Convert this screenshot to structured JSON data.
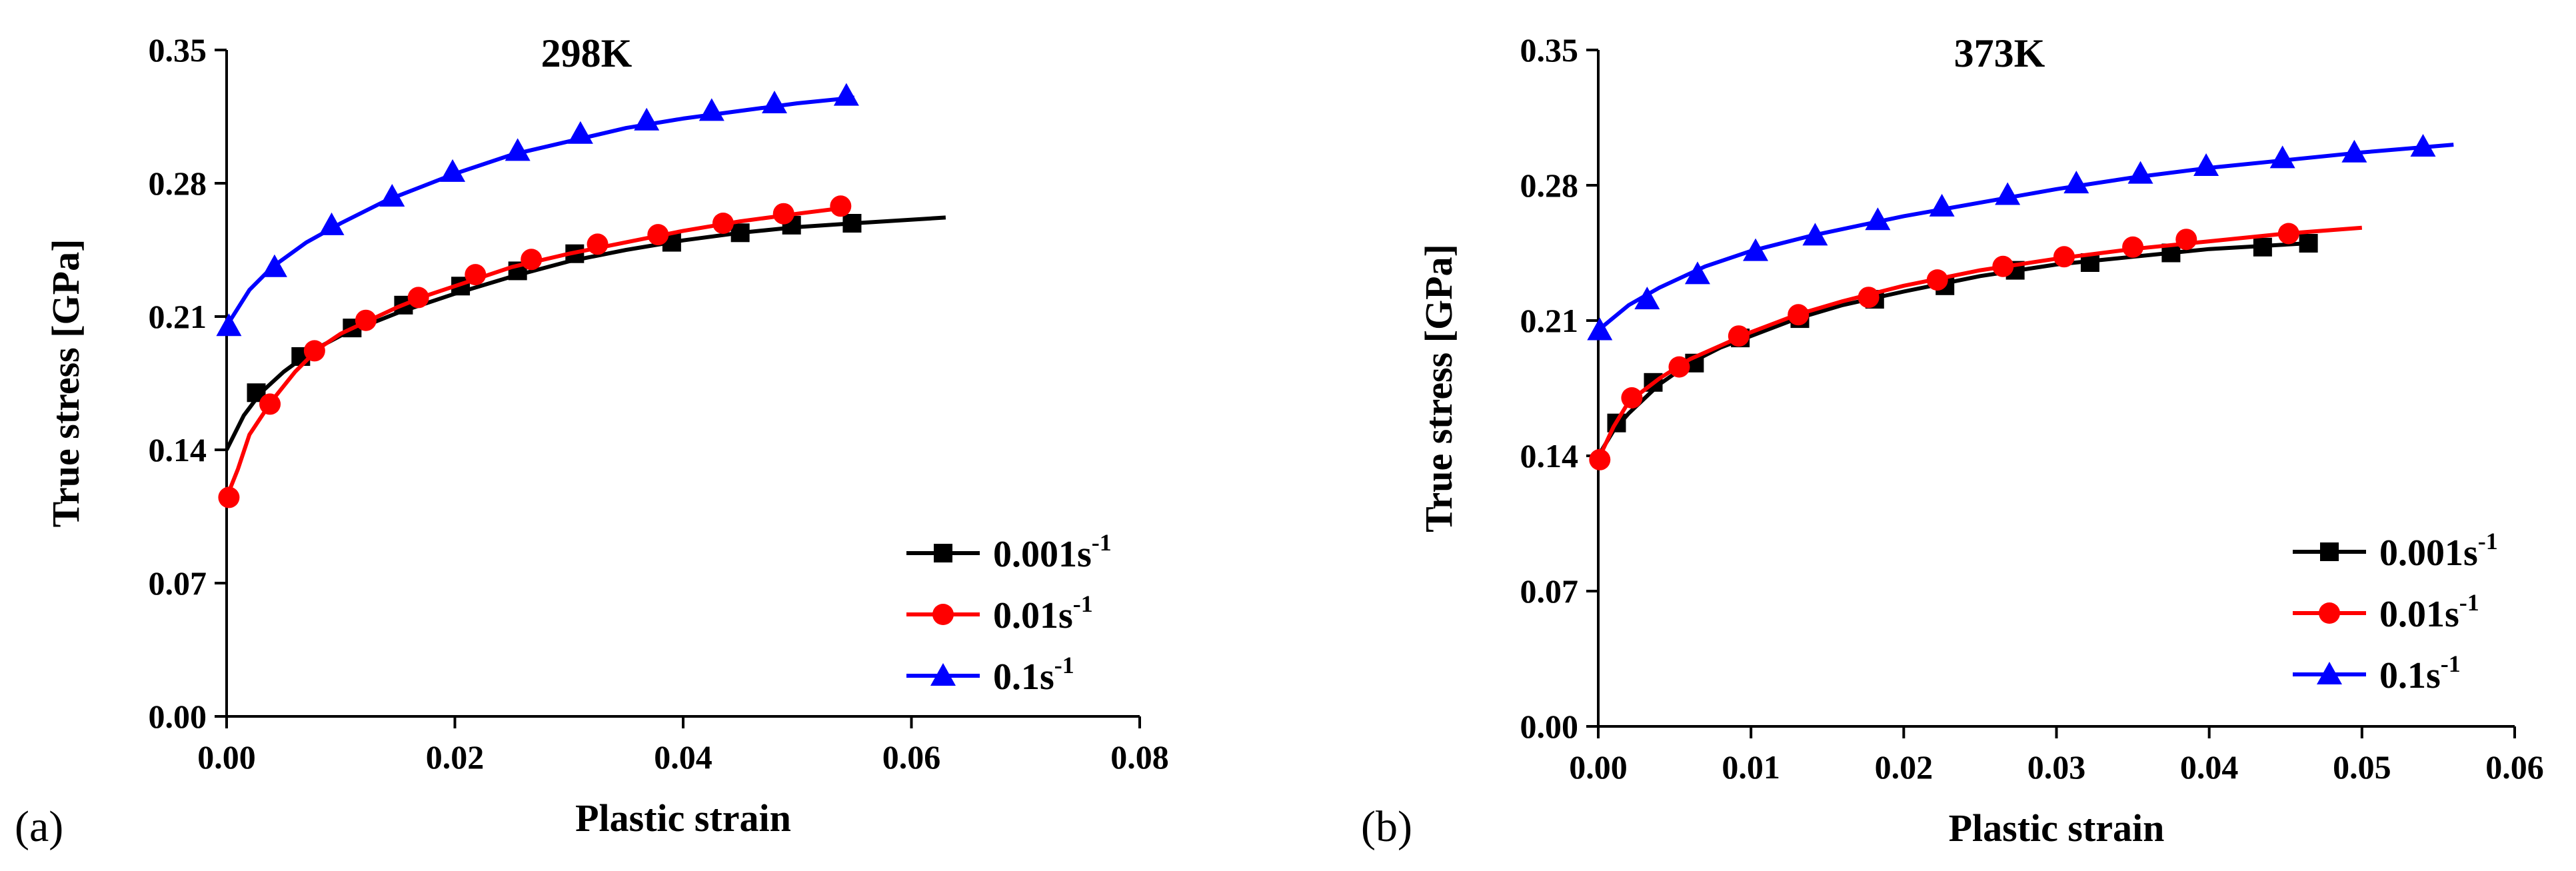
{
  "figure": {
    "panel_labels": [
      "(a)",
      "(b)"
    ]
  },
  "chart_data": [
    {
      "type": "line",
      "title": "298K",
      "xlabel": "Plastic strain",
      "ylabel": "True stress [GPa]",
      "xlim": [
        0,
        0.08
      ],
      "ylim": [
        0,
        0.35
      ],
      "xticks": [
        "0.00",
        "0.02",
        "0.04",
        "0.06",
        "0.08"
      ],
      "yticks": [
        "0.00",
        "0.07",
        "0.14",
        "0.21",
        "0.28",
        "0.35"
      ],
      "grid": false,
      "legend_position": "bottom-right",
      "series": [
        {
          "name": "0.001s",
          "name_sup": "-1",
          "color": "#000000",
          "marker": "square",
          "curve": [
            [
              0,
              0.14
            ],
            [
              0.0015,
              0.158
            ],
            [
              0.003,
              0.17
            ],
            [
              0.005,
              0.181
            ],
            [
              0.0075,
              0.192
            ],
            [
              0.01,
              0.2
            ],
            [
              0.0125,
              0.206
            ],
            [
              0.015,
              0.212
            ],
            [
              0.0175,
              0.217
            ],
            [
              0.02,
              0.222
            ],
            [
              0.025,
              0.231
            ],
            [
              0.03,
              0.239
            ],
            [
              0.035,
              0.245
            ],
            [
              0.04,
              0.25
            ],
            [
              0.045,
              0.254
            ],
            [
              0.05,
              0.257
            ],
            [
              0.055,
              0.259
            ],
            [
              0.063,
              0.262
            ]
          ],
          "markers": [
            [
              0.0026,
              0.17
            ],
            [
              0.0065,
              0.189
            ],
            [
              0.011,
              0.204
            ],
            [
              0.0155,
              0.216
            ],
            [
              0.0205,
              0.226
            ],
            [
              0.0255,
              0.234
            ],
            [
              0.0305,
              0.243
            ],
            [
              0.039,
              0.249
            ],
            [
              0.045,
              0.254
            ],
            [
              0.0495,
              0.258
            ],
            [
              0.0548,
              0.259
            ]
          ]
        },
        {
          "name": "0.01s",
          "name_sup": "-1",
          "color": "#ff0000",
          "marker": "circle",
          "curve": [
            [
              0,
              0.115
            ],
            [
              0.001,
              0.13
            ],
            [
              0.002,
              0.148
            ],
            [
              0.004,
              0.166
            ],
            [
              0.006,
              0.181
            ],
            [
              0.008,
              0.193
            ],
            [
              0.01,
              0.201
            ],
            [
              0.0125,
              0.208
            ],
            [
              0.015,
              0.215
            ],
            [
              0.0175,
              0.221
            ],
            [
              0.02,
              0.226
            ],
            [
              0.025,
              0.236
            ],
            [
              0.03,
              0.243
            ],
            [
              0.035,
              0.249
            ],
            [
              0.04,
              0.255
            ],
            [
              0.045,
              0.26
            ],
            [
              0.05,
              0.264
            ],
            [
              0.054,
              0.267
            ]
          ],
          "markers": [
            [
              0.0002,
              0.115
            ],
            [
              0.0038,
              0.164
            ],
            [
              0.0077,
              0.192
            ],
            [
              0.0122,
              0.208
            ],
            [
              0.0168,
              0.22
            ],
            [
              0.0218,
              0.232
            ],
            [
              0.0267,
              0.24
            ],
            [
              0.0325,
              0.248
            ],
            [
              0.0378,
              0.253
            ],
            [
              0.0435,
              0.259
            ],
            [
              0.0488,
              0.264
            ],
            [
              0.0538,
              0.268
            ]
          ]
        },
        {
          "name": "0.1s",
          "name_sup": "-1",
          "color": "#0000ff",
          "marker": "triangle",
          "curve": [
            [
              0,
              0.205
            ],
            [
              0.002,
              0.224
            ],
            [
              0.004,
              0.236
            ],
            [
              0.007,
              0.249
            ],
            [
              0.01,
              0.259
            ],
            [
              0.014,
              0.271
            ],
            [
              0.02,
              0.285
            ],
            [
              0.025,
              0.295
            ],
            [
              0.03,
              0.302
            ],
            [
              0.035,
              0.309
            ],
            [
              0.04,
              0.314
            ],
            [
              0.045,
              0.318
            ],
            [
              0.05,
              0.322
            ],
            [
              0.055,
              0.325
            ]
          ],
          "markers": [
            [
              0.0002,
              0.205
            ],
            [
              0.0042,
              0.236
            ],
            [
              0.0092,
              0.258
            ],
            [
              0.0145,
              0.273
            ],
            [
              0.0198,
              0.286
            ],
            [
              0.0255,
              0.297
            ],
            [
              0.031,
              0.306
            ],
            [
              0.0368,
              0.313
            ],
            [
              0.0425,
              0.318
            ],
            [
              0.048,
              0.322
            ],
            [
              0.0543,
              0.326
            ]
          ]
        }
      ]
    },
    {
      "type": "line",
      "title": "373K",
      "xlabel": "Plastic strain",
      "ylabel": "True stress [GPa]",
      "xlim": [
        0,
        0.06
      ],
      "ylim": [
        0,
        0.35
      ],
      "xticks": [
        "0.00",
        "0.01",
        "0.02",
        "0.03",
        "0.04",
        "0.05",
        "0.06"
      ],
      "yticks": [
        "0.00",
        "0.07",
        "0.14",
        "0.21",
        "0.28",
        "0.35"
      ],
      "grid": false,
      "legend_position": "bottom-right",
      "series": [
        {
          "name": "0.001s",
          "name_sup": "-1",
          "color": "#000000",
          "marker": "square",
          "curve": [
            [
              0,
              0.14
            ],
            [
              0.001,
              0.153
            ],
            [
              0.002,
              0.162
            ],
            [
              0.004,
              0.177
            ],
            [
              0.006,
              0.188
            ],
            [
              0.008,
              0.196
            ],
            [
              0.01,
              0.202
            ],
            [
              0.013,
              0.211
            ],
            [
              0.016,
              0.218
            ],
            [
              0.02,
              0.225
            ],
            [
              0.025,
              0.233
            ],
            [
              0.03,
              0.239
            ],
            [
              0.035,
              0.243
            ],
            [
              0.04,
              0.247
            ],
            [
              0.0465,
              0.25
            ]
          ],
          "markers": [
            [
              0.0012,
              0.157
            ],
            [
              0.0036,
              0.178
            ],
            [
              0.0063,
              0.188
            ],
            [
              0.0093,
              0.201
            ],
            [
              0.0132,
              0.211
            ],
            [
              0.0181,
              0.221
            ],
            [
              0.0227,
              0.228
            ],
            [
              0.0273,
              0.236
            ],
            [
              0.0322,
              0.24
            ],
            [
              0.0375,
              0.245
            ],
            [
              0.0435,
              0.248
            ],
            [
              0.0465,
              0.25
            ]
          ]
        },
        {
          "name": "0.01s",
          "name_sup": "-1",
          "color": "#ff0000",
          "marker": "circle",
          "curve": [
            [
              0,
              0.138
            ],
            [
              0.001,
              0.155
            ],
            [
              0.002,
              0.168
            ],
            [
              0.004,
              0.18
            ],
            [
              0.006,
              0.19
            ],
            [
              0.008,
              0.197
            ],
            [
              0.01,
              0.204
            ],
            [
              0.013,
              0.213
            ],
            [
              0.016,
              0.22
            ],
            [
              0.02,
              0.228
            ],
            [
              0.025,
              0.236
            ],
            [
              0.03,
              0.242
            ],
            [
              0.035,
              0.247
            ],
            [
              0.04,
              0.251
            ],
            [
              0.045,
              0.255
            ],
            [
              0.05,
              0.258
            ]
          ],
          "markers": [
            [
              0.0001,
              0.138
            ],
            [
              0.0022,
              0.17
            ],
            [
              0.0053,
              0.186
            ],
            [
              0.0092,
              0.202
            ],
            [
              0.0131,
              0.213
            ],
            [
              0.0177,
              0.222
            ],
            [
              0.0222,
              0.231
            ],
            [
              0.0265,
              0.238
            ],
            [
              0.0305,
              0.243
            ],
            [
              0.035,
              0.248
            ],
            [
              0.0385,
              0.252
            ],
            [
              0.0452,
              0.255
            ]
          ]
        },
        {
          "name": "0.1s",
          "name_sup": "-1",
          "color": "#0000ff",
          "marker": "triangle",
          "curve": [
            [
              0,
              0.205
            ],
            [
              0.002,
              0.218
            ],
            [
              0.004,
              0.227
            ],
            [
              0.007,
              0.238
            ],
            [
              0.01,
              0.246
            ],
            [
              0.014,
              0.254
            ],
            [
              0.02,
              0.264
            ],
            [
              0.025,
              0.271
            ],
            [
              0.03,
              0.278
            ],
            [
              0.035,
              0.284
            ],
            [
              0.04,
              0.289
            ],
            [
              0.045,
              0.293
            ],
            [
              0.05,
              0.297
            ],
            [
              0.056,
              0.301
            ]
          ],
          "markers": [
            [
              0.0001,
              0.205
            ],
            [
              0.0032,
              0.221
            ],
            [
              0.0065,
              0.234
            ],
            [
              0.0103,
              0.246
            ],
            [
              0.0142,
              0.254
            ],
            [
              0.0183,
              0.262
            ],
            [
              0.0225,
              0.269
            ],
            [
              0.0268,
              0.275
            ],
            [
              0.0313,
              0.281
            ],
            [
              0.0355,
              0.286
            ],
            [
              0.0398,
              0.29
            ],
            [
              0.0448,
              0.294
            ],
            [
              0.0495,
              0.297
            ],
            [
              0.054,
              0.3
            ]
          ]
        }
      ]
    }
  ]
}
